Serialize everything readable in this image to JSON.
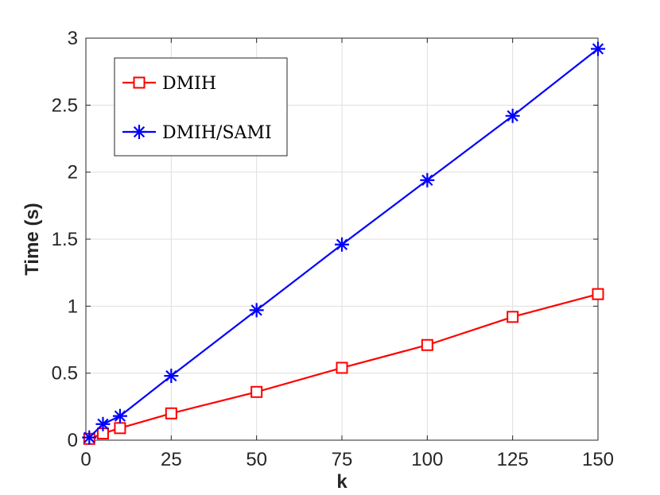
{
  "chart_data": {
    "type": "line",
    "xlabel": "k",
    "ylabel": "Time (s)",
    "xlim": [
      0,
      150
    ],
    "ylim": [
      0,
      3
    ],
    "xticks": [
      0,
      25,
      50,
      75,
      100,
      125,
      150
    ],
    "yticks": [
      0,
      0.5,
      1,
      1.5,
      2,
      2.5,
      3
    ],
    "xtick_labels": [
      "0",
      "25",
      "50",
      "75",
      "100",
      "125",
      "150"
    ],
    "ytick_labels": [
      "0",
      "0.5",
      "1",
      "1.5",
      "2",
      "2.5",
      "3"
    ],
    "grid": true,
    "legend_position": "top-left",
    "x": [
      1,
      5,
      10,
      25,
      50,
      75,
      100,
      125,
      150
    ],
    "series": [
      {
        "name": "DMIH",
        "color": "#ff0000",
        "marker": "square",
        "values": [
          0.01,
          0.05,
          0.09,
          0.2,
          0.36,
          0.54,
          0.71,
          0.92,
          1.09
        ]
      },
      {
        "name": "DMIH/SAMI",
        "color": "#0000ff",
        "marker": "asterisk",
        "values": [
          0.02,
          0.12,
          0.18,
          0.48,
          0.97,
          1.46,
          1.94,
          2.42,
          2.92
        ]
      }
    ]
  }
}
